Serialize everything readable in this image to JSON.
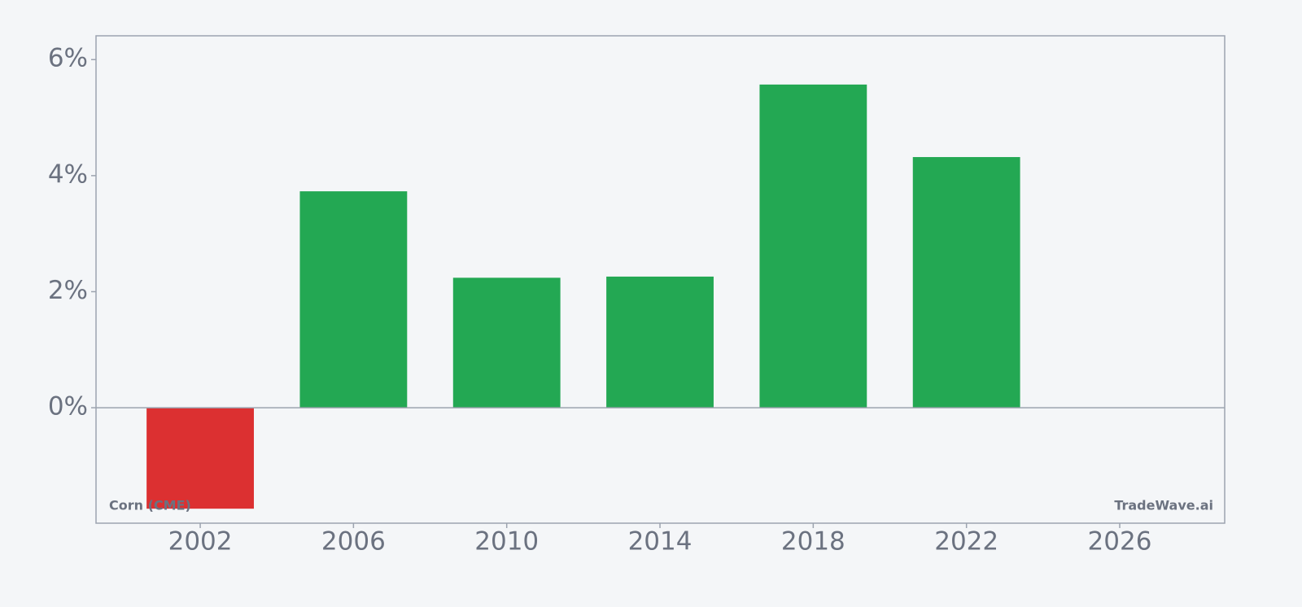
{
  "chart_data": {
    "type": "bar",
    "x": [
      2002,
      2006,
      2010,
      2014,
      2018,
      2022
    ],
    "values": [
      -1.74,
      3.73,
      2.24,
      2.26,
      5.57,
      4.32
    ],
    "colors": [
      "#dc3031",
      "#23a853",
      "#23a853",
      "#23a853",
      "#23a853",
      "#23a853"
    ],
    "xlim": [
      1999.28,
      2028.74
    ],
    "xticks": [
      2002,
      2006,
      2010,
      2014,
      2018,
      2022,
      2026
    ],
    "ylim": [
      -1.99,
      6.41
    ],
    "yticks": [
      {
        "value": 0,
        "label": "0%"
      },
      {
        "value": 2,
        "label": "2%"
      },
      {
        "value": 4,
        "label": "4%"
      },
      {
        "value": 6,
        "label": "6%"
      }
    ],
    "annotations": [
      "Corn (CME)",
      "TradeWave.ai"
    ],
    "grid": false
  }
}
